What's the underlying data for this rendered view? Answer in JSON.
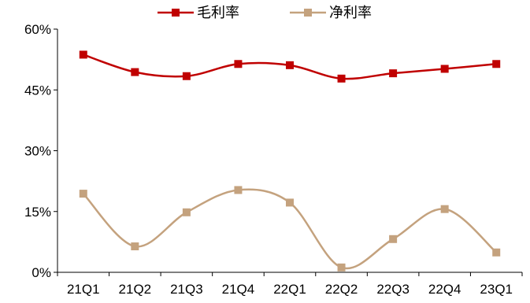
{
  "chart_data": {
    "type": "line",
    "categories": [
      "21Q1",
      "21Q2",
      "21Q3",
      "21Q4",
      "22Q1",
      "22Q2",
      "22Q3",
      "22Q4",
      "23Q1"
    ],
    "series": [
      {
        "name": "毛利率",
        "color": "#c00000",
        "values": [
          53.7,
          49.4,
          48.4,
          51.4,
          51.1,
          47.8,
          49.1,
          50.2,
          51.4
        ]
      },
      {
        "name": "净利率",
        "color": "#c4a27e",
        "values": [
          19.4,
          6.4,
          14.8,
          20.3,
          17.2,
          1.2,
          8.2,
          15.6,
          4.9
        ]
      }
    ],
    "ylim": [
      0,
      60
    ],
    "yticks": [
      "0%",
      "15%",
      "30%",
      "45%",
      "60%"
    ],
    "ytick_values": [
      0,
      15,
      30,
      45,
      60
    ],
    "grid": false,
    "legend": "top-center",
    "smooth": true,
    "marker": "square"
  }
}
